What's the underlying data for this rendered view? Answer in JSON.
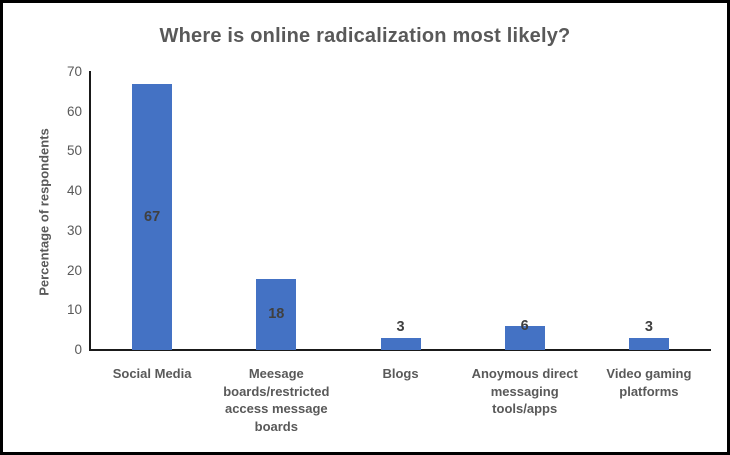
{
  "chart_data": {
    "type": "bar",
    "title": "Where is online radicalization most likely?",
    "categories": [
      "Social Media",
      "Meesage boards/restricted access message boards",
      "Blogs",
      "Anoymous direct messaging tools/apps",
      "Video gaming platforms"
    ],
    "values": [
      67,
      18,
      3,
      6,
      3
    ],
    "xlabel": "",
    "ylabel": "Percentage of respondents",
    "ylim": [
      0,
      70
    ],
    "yticks": [
      0,
      10,
      20,
      30,
      40,
      50,
      60,
      70
    ],
    "grid": false,
    "legend": false,
    "bar_color": "#4472C4",
    "value_label_color": "#404040",
    "axis_line_color": "#1A1A1A",
    "text_color": "#595959",
    "frame_border_color": "#000000",
    "background_color": "#FFFFFF"
  }
}
